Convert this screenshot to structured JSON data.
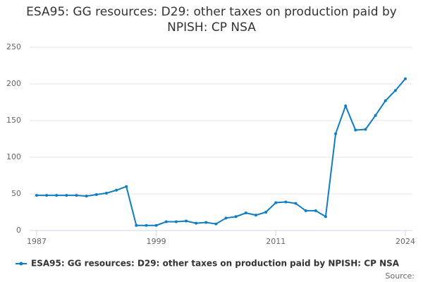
{
  "chart_data": {
    "type": "line",
    "title": "ESA95: GG resources: D29: other taxes on production paid by NPISH: CP NSA",
    "x": [
      1987,
      1988,
      1989,
      1990,
      1991,
      1992,
      1993,
      1994,
      1995,
      1996,
      1997,
      1998,
      1999,
      2000,
      2001,
      2002,
      2003,
      2004,
      2005,
      2006,
      2007,
      2008,
      2009,
      2010,
      2011,
      2012,
      2013,
      2014,
      2015,
      2016,
      2017,
      2018,
      2019,
      2020,
      2021,
      2022,
      2023,
      2024
    ],
    "series": [
      {
        "name": "ESA95: GG resources: D29: other taxes on production paid by NPISH: CP NSA",
        "color": "#0f7dc2",
        "values": [
          48,
          48,
          48,
          48,
          48,
          47,
          49,
          51,
          55,
          60,
          7,
          7,
          7,
          12,
          12,
          13,
          10,
          11,
          9,
          17,
          19,
          24,
          21,
          25,
          38,
          39,
          37,
          27,
          27,
          19,
          132,
          170,
          137,
          138,
          157,
          177,
          191,
          207
        ]
      }
    ],
    "xlim": [
      1987,
      2024
    ],
    "xticks": [
      1987,
      1999,
      2011,
      2024
    ],
    "ylim": [
      0,
      250
    ],
    "yticks": [
      0,
      50,
      100,
      150,
      200,
      250
    ],
    "grid": true,
    "source": "Source:"
  }
}
